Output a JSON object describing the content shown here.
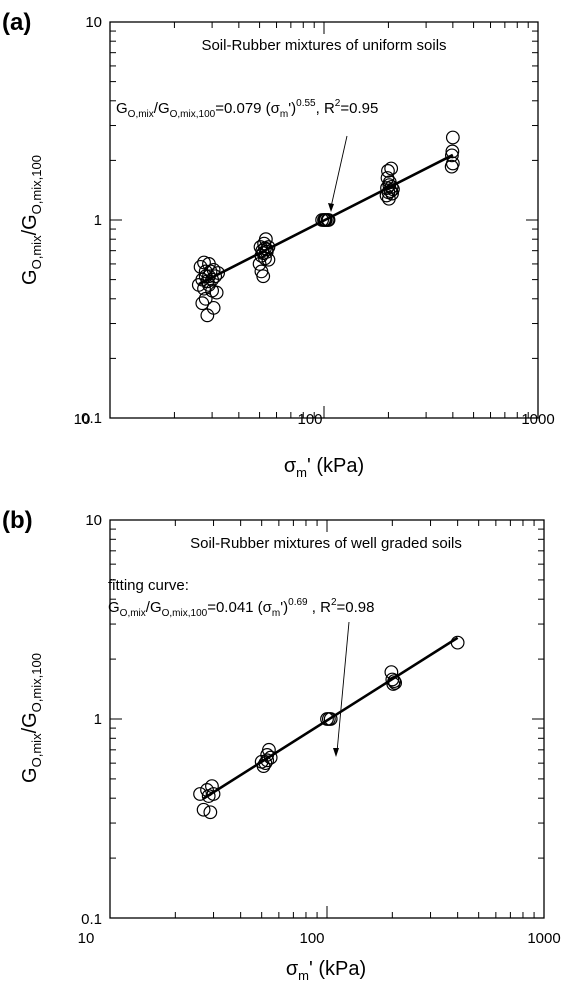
{
  "panels": [
    {
      "label": "(a)",
      "title": "Soil-Rubber mixtures of uniform soils",
      "note": "",
      "equation": {
        "lhs": "G",
        "lhs_sub": "O,mix",
        "slash": "/G",
        "den_sub": "O,mix,100",
        "mid": "=0.079 (σ",
        "m_sub": "m",
        "prime": "'",
        "close": ")",
        "exp": "0.55",
        "tail": ",  R",
        "r2_sup": "2",
        "r2_val": "=0.95"
      },
      "ylabel": {
        "G": "G",
        "sub1": "O,mix",
        "slash": "/G",
        "sub2": "O,mix,100"
      },
      "xlabel": {
        "sigma": "σ",
        "sub": "m",
        "rest": "' (kPa)"
      },
      "xticks": [
        "10",
        "100",
        "1000"
      ],
      "yticks": [
        "0.1",
        "1",
        "10"
      ]
    },
    {
      "label": "(b)",
      "title": "Soil-Rubber mixtures of well graded soils",
      "note": "fitting curve:",
      "equation": {
        "lhs": "G",
        "lhs_sub": "O,mix",
        "slash": "/G",
        "den_sub": "O,mix,100",
        "mid": "=0.041 (σ",
        "m_sub": "m",
        "prime": "'",
        "close": ")",
        "exp": "0.69",
        "tail": " , R",
        "r2_sup": "2",
        "r2_val": "=0.98"
      },
      "ylabel": {
        "G": "G",
        "sub1": "O,mix",
        "slash": "/G",
        "sub2": "O,mix,100"
      },
      "xlabel": {
        "sigma": "σ",
        "sub": "m",
        "rest": "' (kPa)"
      },
      "xticks": [
        "10",
        "100",
        "1000"
      ],
      "yticks": [
        "0.1",
        "1",
        "10"
      ]
    }
  ],
  "chart_data": [
    {
      "type": "scatter",
      "title": "Soil-Rubber mixtures of uniform soils",
      "xlabel": "σm' (kPa)",
      "ylabel": "GO,mix/GO,mix,100",
      "xscale": "log",
      "yscale": "log",
      "xlim": [
        10,
        1000
      ],
      "ylim": [
        0.1,
        10
      ],
      "grid": false,
      "points": [
        [
          26,
          0.47
        ],
        [
          26.5,
          0.58
        ],
        [
          27,
          0.5
        ],
        [
          27,
          0.38
        ],
        [
          27.5,
          0.61
        ],
        [
          27.5,
          0.45
        ],
        [
          28,
          0.55
        ],
        [
          28,
          0.52
        ],
        [
          28,
          0.4
        ],
        [
          28.5,
          0.33
        ],
        [
          28.5,
          0.49
        ],
        [
          29,
          0.6
        ],
        [
          29,
          0.52
        ],
        [
          29,
          0.47
        ],
        [
          29.5,
          0.55
        ],
        [
          30,
          0.5
        ],
        [
          30,
          0.44
        ],
        [
          30.5,
          0.36
        ],
        [
          30.5,
          0.56
        ],
        [
          31,
          0.52
        ],
        [
          31.5,
          0.43
        ],
        [
          32,
          0.54
        ],
        [
          50,
          0.6
        ],
        [
          50.5,
          0.73
        ],
        [
          51,
          0.66
        ],
        [
          51,
          0.55
        ],
        [
          51.5,
          0.7
        ],
        [
          52,
          0.52
        ],
        [
          52,
          0.68
        ],
        [
          52.5,
          0.76
        ],
        [
          53,
          0.72
        ],
        [
          53,
          0.64
        ],
        [
          53.5,
          0.8
        ],
        [
          54,
          0.69
        ],
        [
          54,
          0.71
        ],
        [
          55,
          0.73
        ],
        [
          55,
          0.63
        ],
        [
          98,
          1.0
        ],
        [
          100,
          1.0
        ],
        [
          101,
          1.0
        ],
        [
          102,
          1.0
        ],
        [
          104,
          1.0
        ],
        [
          105,
          1.0
        ],
        [
          196,
          1.33
        ],
        [
          197,
          1.45
        ],
        [
          198,
          1.63
        ],
        [
          199,
          1.77
        ],
        [
          200,
          1.38
        ],
        [
          201,
          1.28
        ],
        [
          202,
          1.5
        ],
        [
          203,
          1.55
        ],
        [
          205,
          1.4
        ],
        [
          206,
          1.82
        ],
        [
          207,
          1.47
        ],
        [
          208,
          1.36
        ],
        [
          210,
          1.43
        ],
        [
          395,
          1.86
        ],
        [
          396,
          2.12
        ],
        [
          398,
          2.22
        ],
        [
          400,
          2.61
        ],
        [
          400,
          1.93
        ]
      ],
      "fit": {
        "a": 0.079,
        "b": 0.55,
        "x_range": [
          26,
          400
        ]
      }
    },
    {
      "type": "scatter",
      "title": "Soil-Rubber mixtures of well graded soils",
      "xlabel": "σm' (kPa)",
      "ylabel": "GO,mix/GO,mix,100",
      "xscale": "log",
      "yscale": "log",
      "xlim": [
        10,
        1000
      ],
      "ylim": [
        0.1,
        10
      ],
      "grid": false,
      "points": [
        [
          26,
          0.42
        ],
        [
          27,
          0.35
        ],
        [
          28,
          0.44
        ],
        [
          28.5,
          0.41
        ],
        [
          29,
          0.34
        ],
        [
          29.5,
          0.46
        ],
        [
          30,
          0.42
        ],
        [
          50,
          0.61
        ],
        [
          51,
          0.58
        ],
        [
          52,
          0.6
        ],
        [
          53,
          0.66
        ],
        [
          54,
          0.7
        ],
        [
          55,
          0.64
        ],
        [
          53,
          0.62
        ],
        [
          100,
          1.0
        ],
        [
          102,
          1.0
        ],
        [
          104,
          1.0
        ],
        [
          198,
          1.72
        ],
        [
          200,
          1.58
        ],
        [
          202,
          1.5
        ],
        [
          204,
          1.55
        ],
        [
          206,
          1.52
        ],
        [
          400,
          2.42
        ]
      ],
      "fit": {
        "a": 0.041,
        "b": 0.69,
        "x_range": [
          27,
          400
        ]
      }
    }
  ]
}
